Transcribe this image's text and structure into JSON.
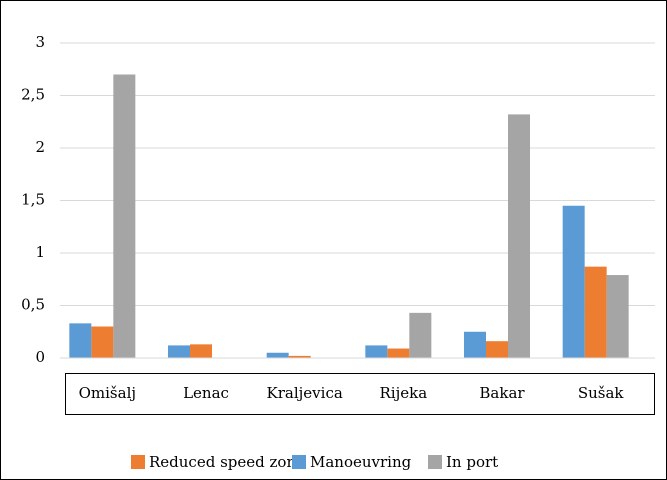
{
  "chart_data": {
    "type": "bar",
    "categories": [
      "Omišalj",
      "Lenac",
      "Kraljevica",
      "Rijeka",
      "Bakar",
      "Sušak"
    ],
    "series": [
      {
        "name": "Reduced speed zone",
        "color": "#ed7d31",
        "values": [
          0.3,
          0.13,
          0.02,
          0.09,
          0.16,
          0.87
        ]
      },
      {
        "name": "Manoeuvring",
        "color": "#5b9bd5",
        "values": [
          0.33,
          0.12,
          0.05,
          0.12,
          0.25,
          1.45
        ]
      },
      {
        "name": "In port",
        "color": "#a5a5a5",
        "values": [
          2.7,
          0,
          0,
          0.43,
          2.32,
          0.79
        ]
      }
    ],
    "ylim": [
      0,
      3
    ],
    "yticks": [
      0,
      {
        "value": 0.5,
        "label": "0,5"
      },
      1,
      {
        "value": 1.5,
        "label": "1,5"
      },
      2,
      {
        "value": 2.5,
        "label": "2,5"
      },
      3
    ],
    "grid": true,
    "legend": "bottom"
  }
}
